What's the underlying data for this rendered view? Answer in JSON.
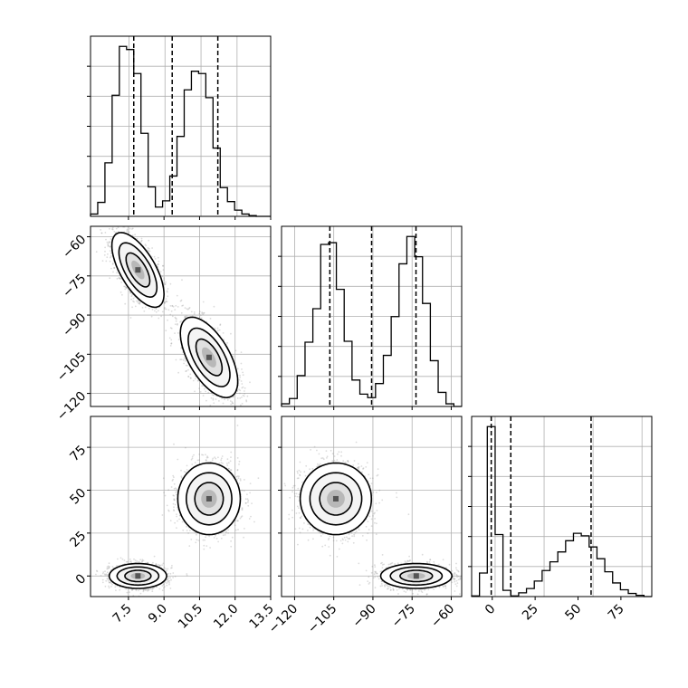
{
  "chart_data": {
    "type": "corner",
    "parameters": [
      "",
      "",
      ""
    ],
    "quantile_markers": [
      [
        7.7,
        9.3,
        11.2
      ],
      [
        -106.5,
        -90.5,
        -73.5
      ],
      [
        -2,
        8,
        49
      ]
    ],
    "axis_ranges": [
      [
        5.9,
        13.5
      ],
      [
        -125,
        -56
      ],
      [
        -12,
        93
      ]
    ],
    "x_ticks": [
      [
        "7.5",
        "9.0",
        "10.5",
        "12.0",
        "13.5"
      ],
      [
        "−120",
        "−105",
        "−90",
        "−75",
        "−60"
      ],
      [
        "0",
        "25",
        "50",
        "75"
      ]
    ],
    "y_ticks": [
      [
        "−60",
        "−75",
        "−90",
        "−105",
        "−120"
      ],
      [
        "75",
        "50",
        "25",
        "0"
      ]
    ],
    "histograms": [
      {
        "bin_edges": [
          5.9,
          6.2,
          6.5,
          6.8,
          7.1,
          7.4,
          7.7,
          8.0,
          8.3,
          8.6,
          8.9,
          9.2,
          9.5,
          9.8,
          10.1,
          10.4,
          10.7,
          11.0,
          11.3,
          11.6,
          11.9,
          12.2,
          12.5,
          12.8,
          13.1,
          13.4
        ],
        "counts": [
          0.3,
          1.8,
          6.9,
          15.6,
          21.9,
          21.5,
          18.4,
          10.7,
          3.8,
          1.2,
          2.0,
          5.2,
          10.3,
          16.3,
          18.7,
          18.4,
          15.3,
          8.8,
          3.7,
          1.9,
          0.8,
          0.3,
          0.1,
          0.0,
          0.0
        ]
      },
      {
        "bin_edges": [
          -125,
          -122,
          -119,
          -116,
          -113,
          -110,
          -107,
          -104,
          -101,
          -98,
          -95,
          -92,
          -89,
          -86,
          -83,
          -80,
          -77,
          -74,
          -71,
          -68,
          -65,
          -62,
          -59,
          -56
        ],
        "counts": [
          0.3,
          0.9,
          3.5,
          7.3,
          11.1,
          18.4,
          18.6,
          13.3,
          7.4,
          3.0,
          1.4,
          1.0,
          2.6,
          5.8,
          10.2,
          16.2,
          19.3,
          17.0,
          11.7,
          5.2,
          1.6,
          0.3,
          0.0
        ]
      },
      {
        "bin_edges": [
          -12,
          -8,
          -4,
          0,
          4,
          8,
          12,
          16,
          20,
          24,
          28,
          32,
          36,
          40,
          44,
          48,
          52,
          56,
          60,
          64,
          68,
          72,
          76,
          80
        ],
        "counts": [
          0.1,
          3.8,
          27.4,
          10.0,
          1.0,
          0.1,
          0.6,
          1.3,
          2.5,
          4.2,
          5.6,
          7.2,
          9.0,
          10.2,
          9.8,
          8.0,
          6.1,
          4.0,
          2.2,
          1.1,
          0.5,
          0.2,
          0.0
        ]
      }
    ],
    "modes": {
      "p1_p2": [
        [
          7.9,
          -72.7,
          0.5,
          6.5,
          -0.65
        ],
        [
          10.9,
          -106.2,
          0.55,
          7.0,
          -0.6
        ]
      ],
      "p1_p3": [
        [
          7.9,
          0,
          0.55,
          3.3,
          0.0
        ],
        [
          10.9,
          45,
          0.6,
          9.5,
          0.0
        ]
      ],
      "p2_p3": [
        [
          -73.4,
          0,
          6.2,
          3.3,
          0.0
        ],
        [
          -104.2,
          45,
          6.2,
          9.5,
          0.0
        ]
      ]
    },
    "grid": true,
    "point_color": "#808080",
    "line_color": "#000000"
  }
}
